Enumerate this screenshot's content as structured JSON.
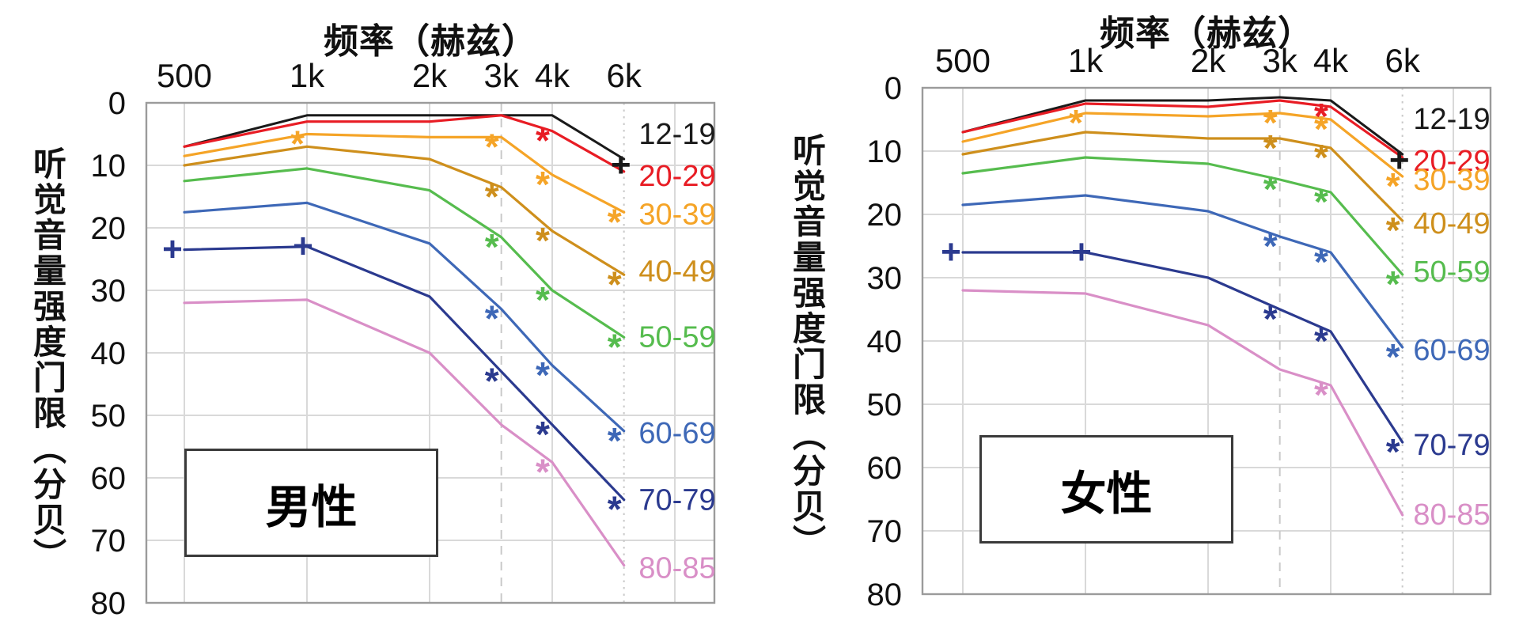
{
  "page": {
    "background": "#ffffff"
  },
  "chart_data": [
    {
      "type": "line",
      "panel_label": "男性",
      "title": "频率（赫兹）",
      "ylabel": "听觉音量强度门限（分贝）",
      "x_tick_labels": [
        "500",
        "1k",
        "2k",
        "3k",
        "4k",
        "6k"
      ],
      "frequencies_hz": [
        500,
        1000,
        2000,
        3000,
        4000,
        6000
      ],
      "x_scale": "log",
      "y_ticks": [
        0,
        10,
        20,
        30,
        40,
        50,
        60,
        70,
        80
      ],
      "ylim": [
        0,
        80
      ],
      "y_inverted": true,
      "grid": true,
      "legend_position": "right-inside",
      "series": [
        {
          "name": "12-19",
          "color": "#1a1a1a",
          "values": [
            7,
            2,
            2,
            2,
            2,
            9
          ],
          "star_at": [],
          "plus_at": [
            "6k"
          ]
        },
        {
          "name": "20-29",
          "color": "#e81c24",
          "values": [
            7,
            3,
            3,
            2,
            4.5,
            11
          ],
          "star_at": [
            "4k"
          ],
          "plus_at": []
        },
        {
          "name": "30-39",
          "color": "#f5a427",
          "values": [
            8.5,
            5,
            5.5,
            5.5,
            11.5,
            17.5
          ],
          "star_at": [
            "1k",
            "3k",
            "4k",
            "6k"
          ],
          "plus_at": []
        },
        {
          "name": "40-49",
          "color": "#ce8f1c",
          "values": [
            10,
            7,
            9,
            13.5,
            20.5,
            27.5
          ],
          "star_at": [
            "3k",
            "4k",
            "6k"
          ],
          "plus_at": []
        },
        {
          "name": "50-59",
          "color": "#56bc4e",
          "values": [
            12.5,
            10.5,
            14,
            21.5,
            30,
            37.5
          ],
          "star_at": [
            "3k",
            "4k",
            "6k"
          ],
          "plus_at": []
        },
        {
          "name": "60-69",
          "color": "#3e68b7",
          "values": [
            17.5,
            16,
            22.5,
            33,
            42,
            52.5
          ],
          "star_at": [
            "3k",
            "4k",
            "6k"
          ],
          "plus_at": []
        },
        {
          "name": "70-79",
          "color": "#2b3a8f",
          "values": [
            23.5,
            23,
            31,
            43,
            51.5,
            63.5
          ],
          "star_at": [
            "3k",
            "4k",
            "6k"
          ],
          "plus_at": [
            "500",
            "1k"
          ]
        },
        {
          "name": "80-85",
          "color": "#d98fc7",
          "values": [
            32,
            31.5,
            40,
            51.5,
            57.5,
            74
          ],
          "star_at": [
            "4k"
          ],
          "plus_at": []
        }
      ]
    },
    {
      "type": "line",
      "panel_label": "女性",
      "title": "频率（赫兹）",
      "ylabel": "听觉音量强度门限（分贝）",
      "x_tick_labels": [
        "500",
        "1k",
        "2k",
        "3k",
        "4k",
        "6k"
      ],
      "frequencies_hz": [
        500,
        1000,
        2000,
        3000,
        4000,
        6000
      ],
      "x_scale": "log",
      "y_ticks": [
        0,
        10,
        20,
        30,
        40,
        50,
        60,
        70,
        80
      ],
      "ylim": [
        0,
        80
      ],
      "y_inverted": true,
      "grid": true,
      "legend_position": "right-inside",
      "series": [
        {
          "name": "12-19",
          "color": "#1a1a1a",
          "values": [
            7,
            2,
            2,
            1.5,
            2,
            10.5
          ],
          "star_at": [],
          "plus_at": [
            "6k"
          ]
        },
        {
          "name": "20-29",
          "color": "#e81c24",
          "values": [
            7,
            2.5,
            3,
            2,
            3,
            11
          ],
          "star_at": [
            "4k"
          ],
          "plus_at": []
        },
        {
          "name": "30-39",
          "color": "#f5a427",
          "values": [
            8.5,
            4,
            4.5,
            4,
            5,
            14
          ],
          "star_at": [
            "1k",
            "3k",
            "4k",
            "6k"
          ],
          "plus_at": []
        },
        {
          "name": "40-49",
          "color": "#ce8f1c",
          "values": [
            10.5,
            7,
            8,
            8,
            9.5,
            21
          ],
          "star_at": [
            "3k",
            "4k",
            "6k"
          ],
          "plus_at": []
        },
        {
          "name": "50-59",
          "color": "#56bc4e",
          "values": [
            13.5,
            11,
            12,
            14.5,
            16.5,
            29.5
          ],
          "star_at": [
            "3k",
            "4k",
            "6k"
          ],
          "plus_at": []
        },
        {
          "name": "60-69",
          "color": "#3e68b7",
          "values": [
            18.5,
            17,
            19.5,
            23.5,
            26,
            41
          ],
          "star_at": [
            "3k",
            "4k",
            "6k"
          ],
          "plus_at": []
        },
        {
          "name": "70-79",
          "color": "#2b3a8f",
          "values": [
            26,
            26,
            30,
            35,
            38.5,
            56
          ],
          "star_at": [
            "3k",
            "4k",
            "6k"
          ],
          "plus_at": [
            "500",
            "1k"
          ]
        },
        {
          "name": "80-85",
          "color": "#d98fc7",
          "values": [
            32,
            32.5,
            37.5,
            44.5,
            47,
            67.5
          ],
          "star_at": [
            "4k"
          ],
          "plus_at": []
        }
      ]
    }
  ],
  "style_colors": {
    "grid": "#d9d9d9",
    "frame": "#9b9b9b",
    "dashed_guide": "#c9c9c9",
    "tick_text": "#111111"
  }
}
